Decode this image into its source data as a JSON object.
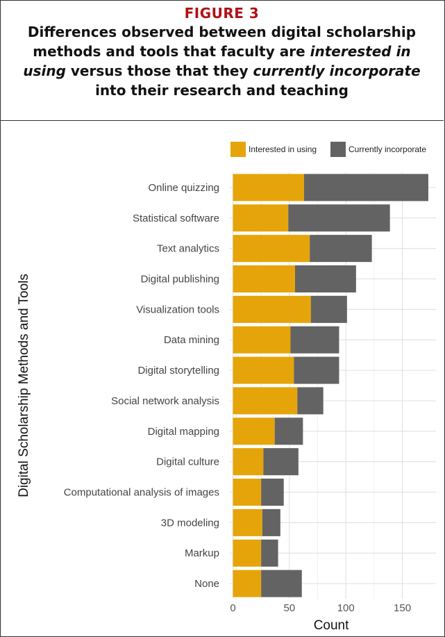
{
  "figure": {
    "label": "FIGURE 3",
    "title_parts": [
      {
        "text": "Differences observed between digital scholarship methods and tools that faculty are ",
        "italic": false
      },
      {
        "text": "interested in using",
        "italic": true
      },
      {
        "text": " versus those that they ",
        "italic": false
      },
      {
        "text": "currently incorporate",
        "italic": true
      },
      {
        "text": " into their research and teaching",
        "italic": false
      }
    ]
  },
  "colors": {
    "interested": "#E5A50A",
    "incorporate": "#636363",
    "grid_major": "#e3e3e3",
    "grid_minor": "#f0f0f0",
    "label_red": "#b11116"
  },
  "chart_data": {
    "type": "bar",
    "orientation": "horizontal",
    "stacked": true,
    "ylabel": "Digital Scholarship Methods and Tools",
    "xlabel": "Count",
    "xlim": [
      0,
      175
    ],
    "xticks": [
      0,
      50,
      100,
      150
    ],
    "grid": true,
    "legend_position": "top-right",
    "categories": [
      "Online quizzing",
      "Statistical software",
      "Text analytics",
      "Digital publishing",
      "Visualization tools",
      "Data mining",
      "Digital storytelling",
      "Social network analysis",
      "Digital mapping",
      "Digital culture",
      "Computational analysis of images",
      "3D modeling",
      "Markup",
      "None"
    ],
    "series": [
      {
        "name": "Interested in using",
        "values": [
          63,
          49,
          68,
          55,
          69,
          51,
          54,
          57,
          37,
          27,
          25,
          26,
          25,
          25
        ]
      },
      {
        "name": "Currently incorporate",
        "values": [
          110,
          90,
          55,
          54,
          32,
          43,
          40,
          23,
          25,
          31,
          20,
          16,
          15,
          36
        ]
      }
    ]
  }
}
